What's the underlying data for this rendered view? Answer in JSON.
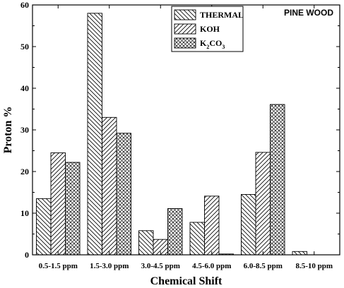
{
  "chart_data": {
    "type": "bar",
    "annotation": "PINE WOOD",
    "xlabel": "Chemical Shift",
    "ylabel": "Proton %",
    "ylim": [
      0,
      60
    ],
    "yticks": [
      0,
      10,
      20,
      30,
      40,
      50,
      60
    ],
    "grid": false,
    "legend_position": "top-right",
    "categories": [
      "0.5-1.5 ppm",
      "1.5-3.0 ppm",
      "3.0-4.5 ppm",
      "4.5-6.0 ppm",
      "6.0-8.5 ppm",
      "8.5-10 ppm"
    ],
    "series": [
      {
        "name": "THERMAL",
        "pattern": "diagonal-down",
        "values": [
          13.5,
          58.0,
          5.8,
          7.8,
          14.5,
          0.8
        ]
      },
      {
        "name": "KOH",
        "pattern": "diagonal-up",
        "values": [
          24.5,
          33.0,
          3.7,
          14.1,
          24.6,
          0
        ]
      },
      {
        "name": "K2CO3",
        "name_main": "K",
        "name_sub1": "2",
        "name_mid": "CO",
        "name_sub2": "3",
        "pattern": "crosshatch",
        "values": [
          22.2,
          29.2,
          11.1,
          0.2,
          36.1,
          0
        ]
      }
    ]
  }
}
